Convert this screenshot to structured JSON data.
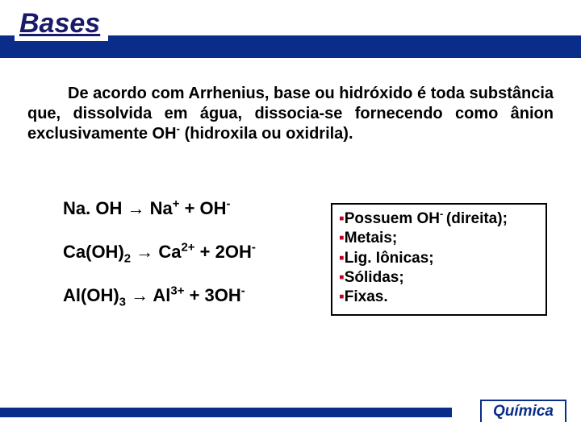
{
  "header": {
    "title": "Bases",
    "bar_color": "#0a2d8a",
    "title_color": "#1a1a6a"
  },
  "paragraph": {
    "text_parts": {
      "p1": "De acordo com Arrhenius, base ou hidróxido é toda substância que, dissolvida em água, dissocia-se fornecendo como ânion exclusivamente OH",
      "sup1": "-",
      "p2": " (hidroxila ou oxidrila)."
    }
  },
  "equations": [
    {
      "lhs": "Na. OH",
      "arrow": "→",
      "rhs_base": "Na",
      "rhs_sup": "+",
      "plus": " + OH",
      "tail_sup": "-"
    },
    {
      "lhs": "Ca(OH)",
      "lhs_sub": "2",
      "arrow": "→",
      "rhs_base": " Ca",
      "rhs_sup": "2+",
      "plus": " + 2OH",
      "tail_sup": "-"
    },
    {
      "lhs": "Al(OH)",
      "lhs_sub": "3",
      "arrow": "→",
      "rhs_base": " Al",
      "rhs_sup": "3+",
      "plus": " + 3OH",
      "tail_sup": "-"
    }
  ],
  "properties": {
    "bullet": "▪",
    "items": [
      {
        "pre": "Possuem OH",
        "sup": "- ",
        "post": "(direita);"
      },
      {
        "pre": "Metais;",
        "sup": "",
        "post": ""
      },
      {
        "pre": "Lig. Iônicas;",
        "sup": "",
        "post": ""
      },
      {
        "pre": "Sólidas;",
        "sup": "",
        "post": ""
      },
      {
        "pre": "Fixas.",
        "sup": "",
        "post": ""
      }
    ]
  },
  "footer": {
    "label": "Química",
    "bar_color": "#0a2d8a"
  }
}
